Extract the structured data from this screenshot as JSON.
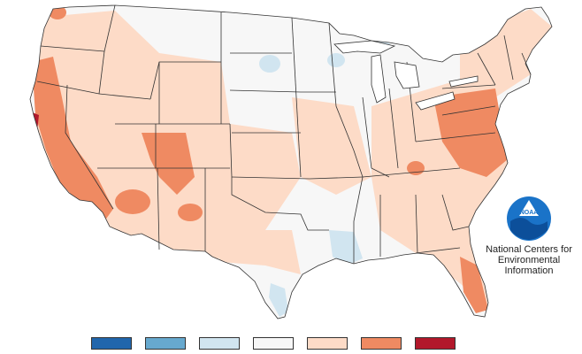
{
  "map": {
    "legend": {
      "colors": [
        "#2166ac",
        "#67a9cf",
        "#d1e5f0",
        "#f7f7f7",
        "#fddbc7",
        "#ef8a62",
        "#b2182b"
      ]
    },
    "credit": {
      "logo_text": "NOAA",
      "line1": "National Centers for",
      "line2": "Environmental",
      "line3": "Information"
    },
    "palette": {
      "land": "#f7f7f7",
      "border": "#333333",
      "light_warm": "#fddbc7",
      "warm": "#ef8a62",
      "hot": "#b2182b",
      "light_cool": "#d1e5f0",
      "noaa_blue": "#1a73c8"
    }
  }
}
